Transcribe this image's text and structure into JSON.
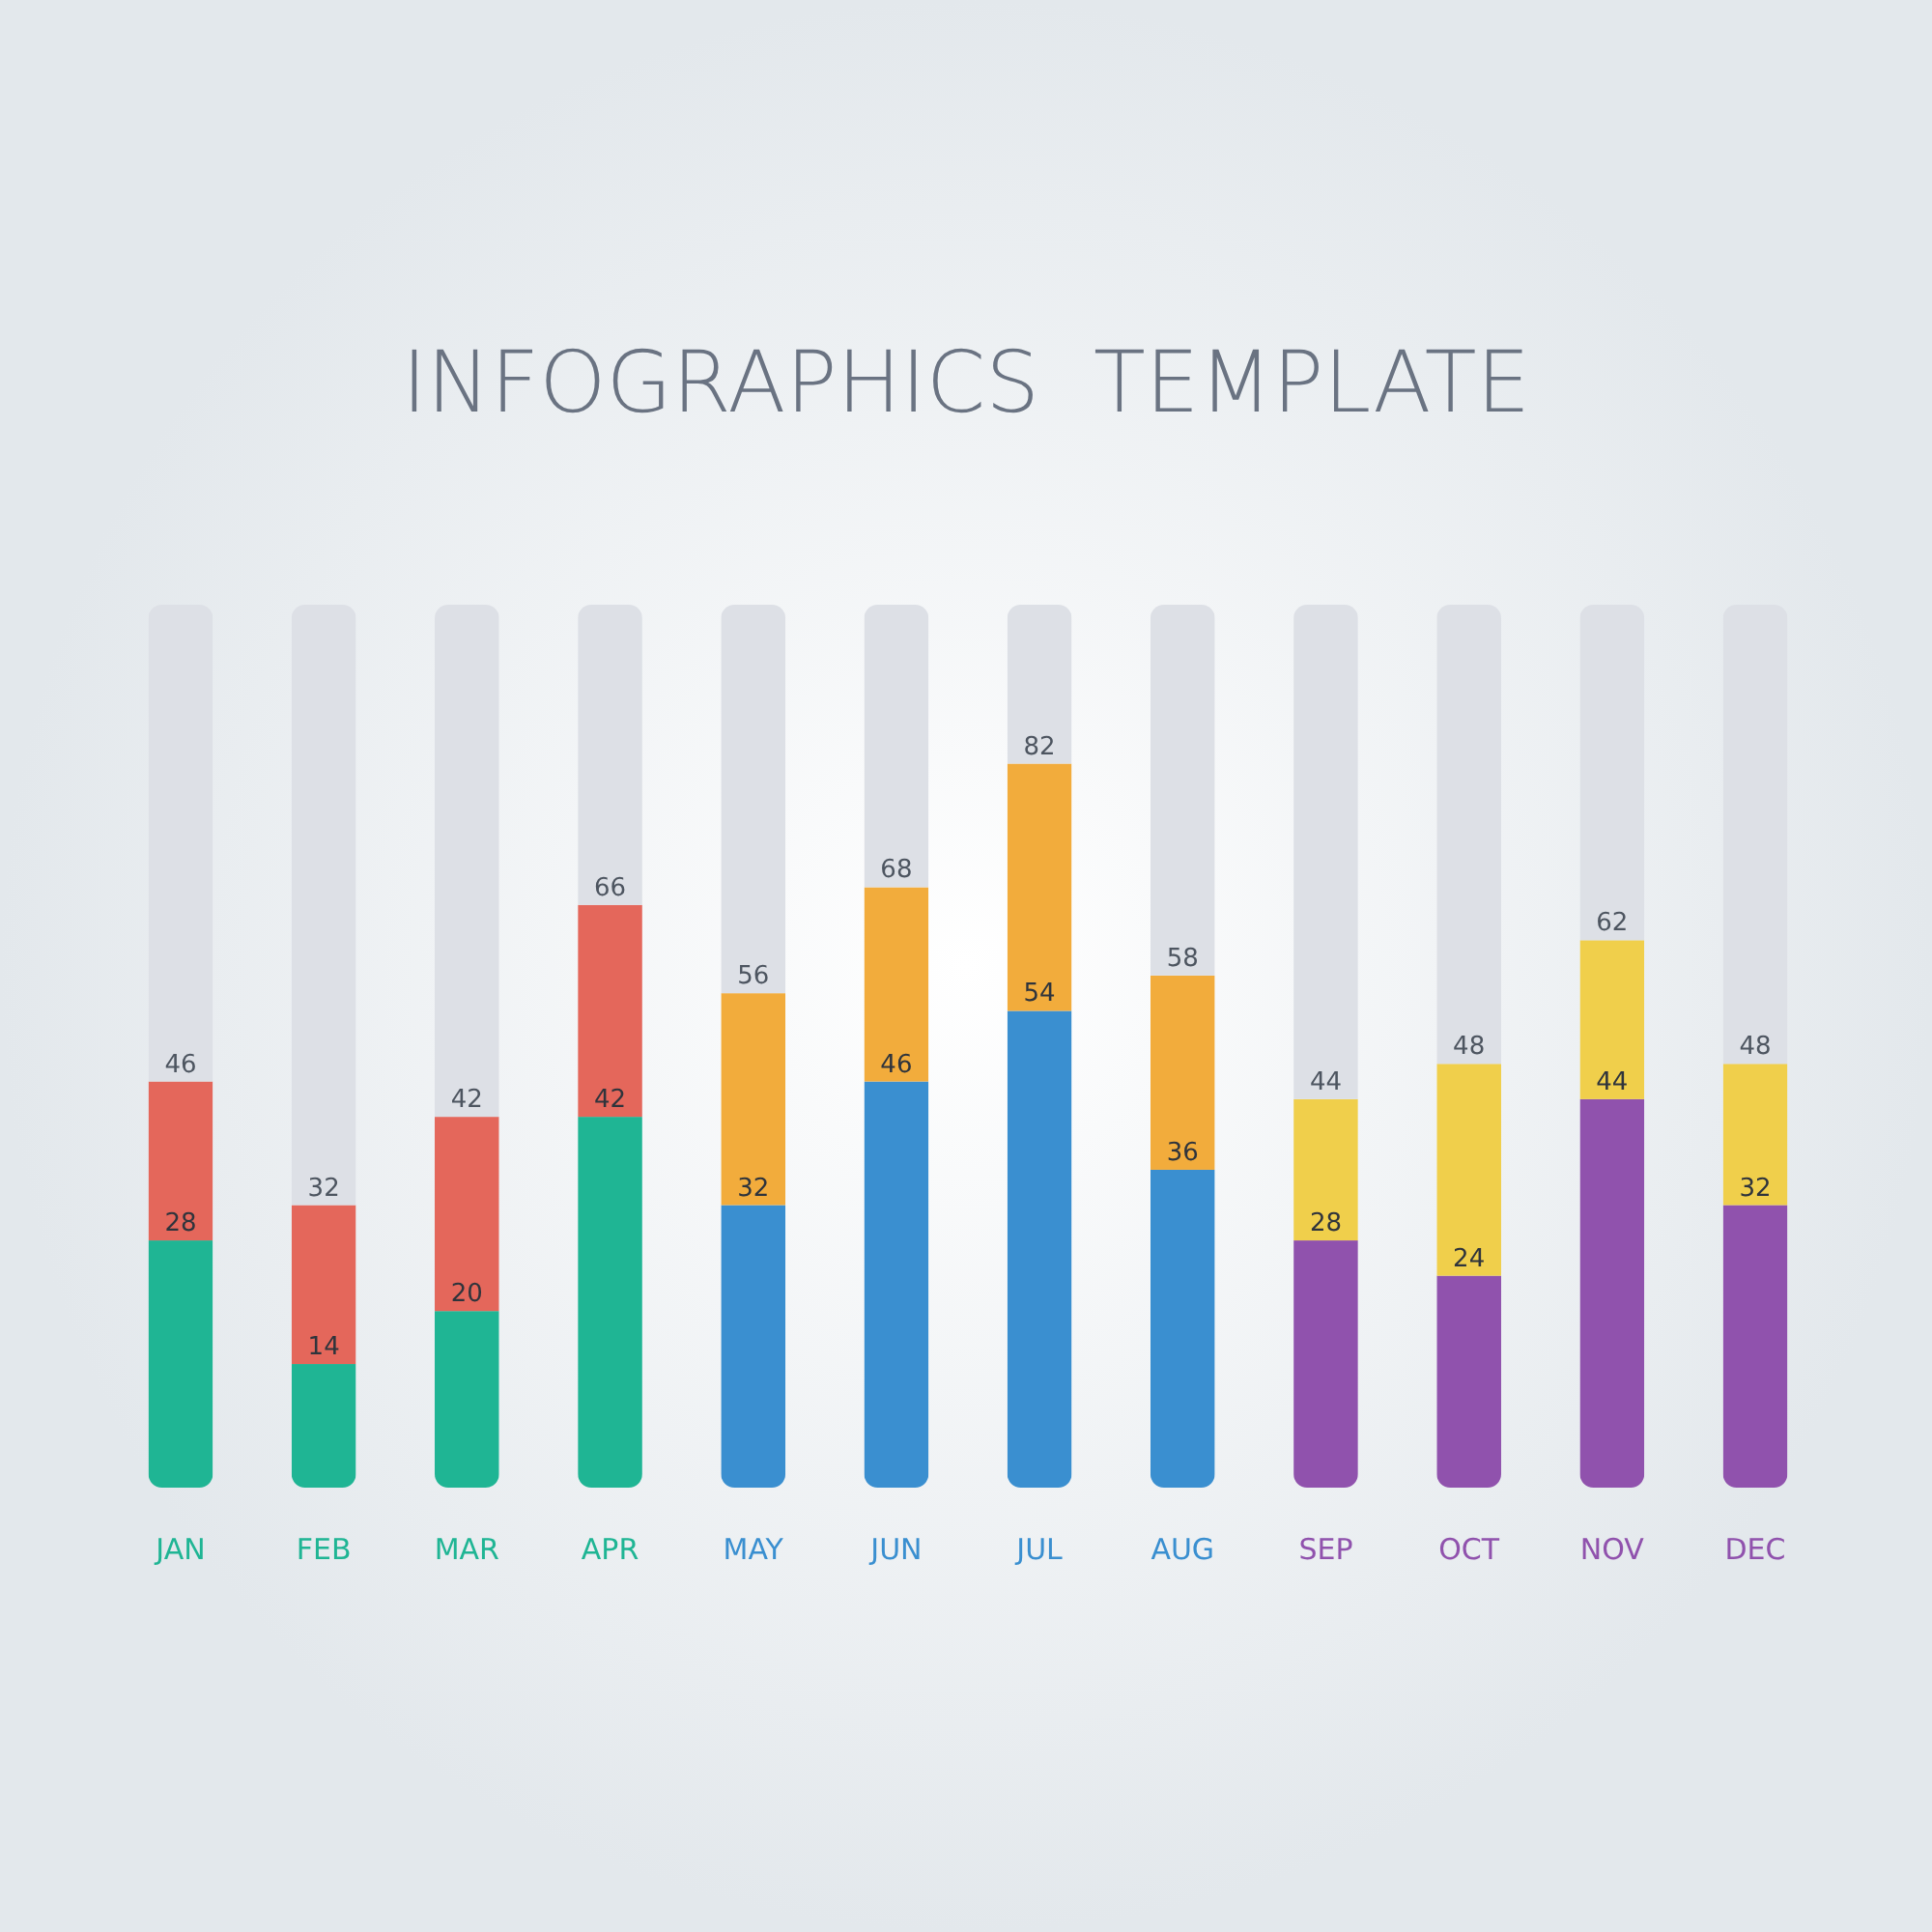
{
  "chart_data": {
    "type": "bar",
    "stacked": true,
    "title": "INFOGRAPHICS  TEMPLATE",
    "categories": [
      "JAN",
      "FEB",
      "MAR",
      "APR",
      "MAY",
      "JUN",
      "JUL",
      "AUG",
      "SEP",
      "OCT",
      "NOV",
      "DEC"
    ],
    "ylim": [
      0,
      100
    ],
    "tick_labels": "x",
    "series": [
      {
        "colors": [
          "#1fb594",
          "#1fb594",
          "#1fb594",
          "#1fb594",
          "#3a8fd0",
          "#3a8fd0",
          "#3a8fd0",
          "#3a8fd0",
          "#9052ad",
          "#9052ad",
          "#9052ad",
          "#9052ad"
        ],
        "values": [
          28,
          14,
          20,
          42,
          32,
          46,
          54,
          36,
          28,
          24,
          44,
          32
        ],
        "value_labels": [
          "28",
          "14",
          "20",
          "42",
          "32",
          "46",
          "54",
          "36",
          "28",
          "24",
          "44",
          "32"
        ]
      },
      {
        "colors": [
          "#e4675b",
          "#e4675b",
          "#e4675b",
          "#e4675b",
          "#f2ac3c",
          "#f2ac3c",
          "#f2ac3c",
          "#f2ac3c",
          "#f0cf4b",
          "#f0cf4b",
          "#f0cf4b",
          "#f0cf4b"
        ],
        "values": [
          18,
          18,
          22,
          24,
          24,
          22,
          28,
          22,
          16,
          24,
          18,
          16
        ]
      },
      {
        "color": "#dde0e6",
        "values": [
          54,
          68,
          58,
          34,
          44,
          32,
          18,
          42,
          56,
          52,
          38,
          52
        ]
      }
    ],
    "annotations": [
      {
        "text": "46",
        "x": "JAN",
        "y": 46
      },
      {
        "text": "32",
        "x": "FEB",
        "y": 32
      },
      {
        "text": "42",
        "x": "MAR",
        "y": 42
      },
      {
        "text": "66",
        "x": "APR",
        "y": 66
      },
      {
        "text": "56",
        "x": "MAY",
        "y": 56
      },
      {
        "text": "68",
        "x": "JUN",
        "y": 68
      },
      {
        "text": "82",
        "x": "JUL",
        "y": 82
      },
      {
        "text": "58",
        "x": "AUG",
        "y": 58
      },
      {
        "text": "44",
        "x": "SEP",
        "y": 44
      },
      {
        "text": "48",
        "x": "OCT",
        "y": 48
      },
      {
        "text": "62",
        "x": "NOV",
        "y": 62
      },
      {
        "text": "48",
        "x": "DEC",
        "y": 48
      }
    ]
  }
}
